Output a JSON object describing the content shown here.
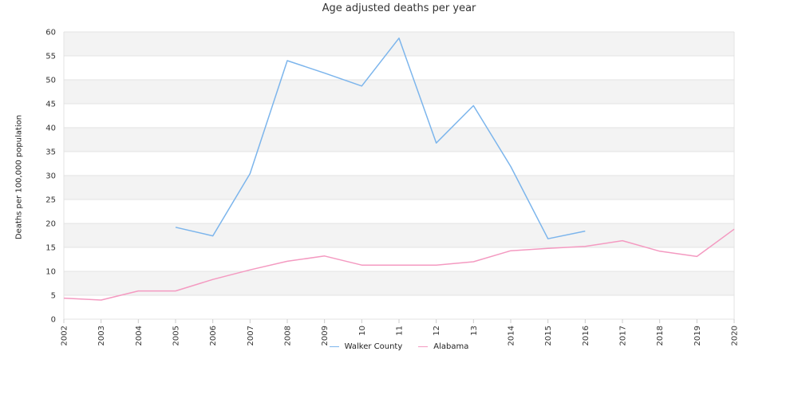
{
  "chart_data": {
    "type": "line",
    "title": "Age adjusted deaths per year",
    "xlabel": "",
    "ylabel": "Deaths per 100,000 population",
    "x": [
      "2002",
      "2003",
      "2004",
      "2005",
      "2006",
      "2007",
      "2008",
      "2009",
      "2010",
      "2011",
      "2012",
      "2013",
      "2014",
      "2015",
      "2016",
      "2017",
      "2018",
      "2019",
      "2020"
    ],
    "x_tick_labels": [
      "2002",
      "2003",
      "2004",
      "2005",
      "2006",
      "2007",
      "2008",
      "2009",
      "10",
      "11",
      "12",
      "13",
      "2014",
      "2015",
      "2016",
      "2017",
      "2018",
      "2019",
      "2020"
    ],
    "ylim": [
      0,
      60
    ],
    "y_ticks": [
      0,
      5,
      10,
      15,
      20,
      25,
      30,
      35,
      40,
      45,
      50,
      55,
      60
    ],
    "grid": true,
    "legend": "bottom-center",
    "series": [
      {
        "name": "Walker County",
        "color": "#7cb5ec",
        "values": [
          null,
          null,
          null,
          19.2,
          17.4,
          30.4,
          54.0,
          51.4,
          48.7,
          58.7,
          36.8,
          44.6,
          31.9,
          16.8,
          18.4,
          null,
          null,
          null,
          null
        ]
      },
      {
        "name": "Alabama",
        "color": "#f49ac1",
        "values": [
          4.4,
          4.0,
          5.9,
          5.9,
          8.3,
          10.3,
          12.1,
          13.2,
          11.3,
          11.3,
          11.3,
          12.0,
          14.3,
          14.8,
          15.2,
          16.4,
          14.2,
          13.1,
          18.8
        ]
      }
    ]
  }
}
